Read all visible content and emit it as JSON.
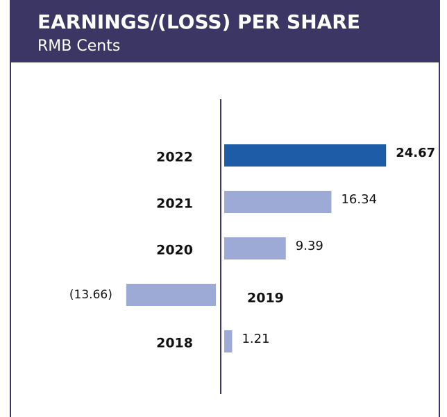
{
  "chart_data": {
    "type": "hbar",
    "title": "EARNINGS/(LOSS) PER SHARE",
    "subtitle": "RMB Cents",
    "categories": [
      "2022",
      "2021",
      "2020",
      "2019",
      "2018"
    ],
    "values": [
      24.67,
      16.34,
      9.39,
      -13.66,
      1.21
    ],
    "value_labels": [
      "24.67",
      "16.34",
      "9.39",
      "(13.66)",
      "1.21"
    ],
    "colors": [
      "#1f5ca8",
      "#9eaad6",
      "#9eaad6",
      "#9eaad6",
      "#9eaad6"
    ]
  }
}
